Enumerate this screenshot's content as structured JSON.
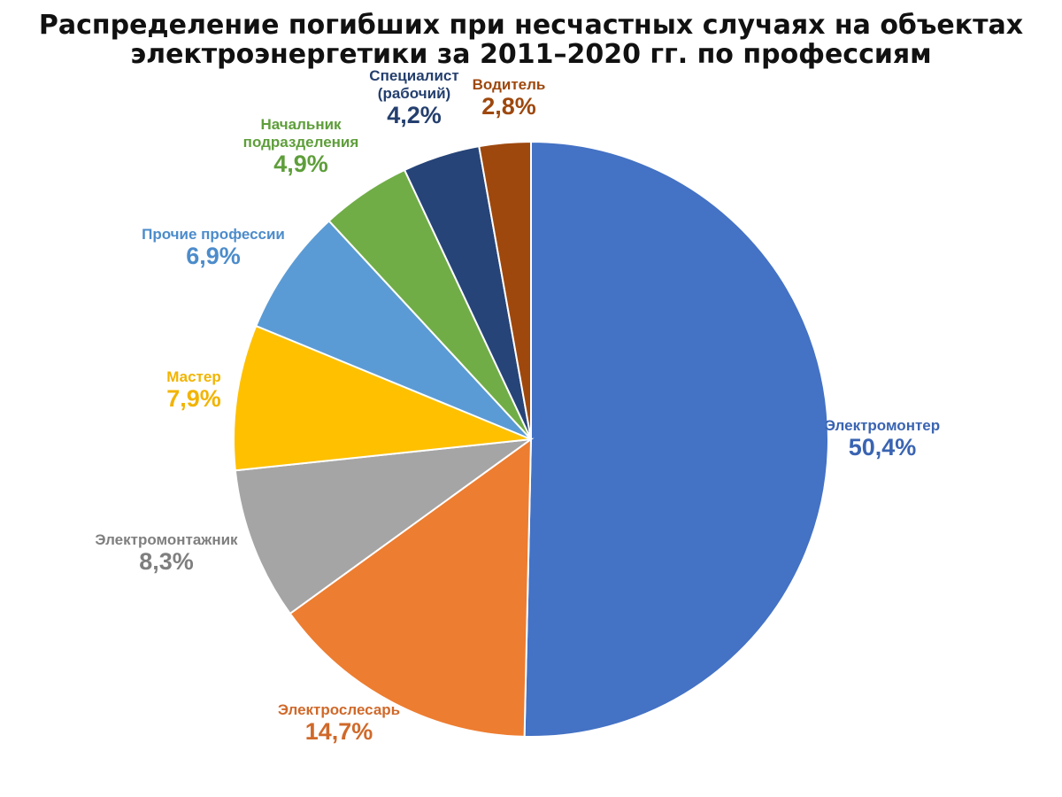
{
  "chart_data": {
    "type": "pie",
    "title_lines": [
      "Распределение погибших при несчастных случаях на объектах",
      "электроэнергетики за 2011–2020 гг. по профессиям"
    ],
    "slices": [
      {
        "name_lines": [
          "Электромонтер"
        ],
        "value": 50.4,
        "value_label": "50,4%",
        "color": "#4472C4"
      },
      {
        "name_lines": [
          "Электрослесарь"
        ],
        "value": 14.7,
        "value_label": "14,7%",
        "color": "#ED7D31"
      },
      {
        "name_lines": [
          "Электромонтажник"
        ],
        "value": 8.3,
        "value_label": "8,3%",
        "color": "#A5A5A5"
      },
      {
        "name_lines": [
          "Мастер"
        ],
        "value": 7.9,
        "value_label": "7,9%",
        "color": "#FFC000"
      },
      {
        "name_lines": [
          "Прочие профессии"
        ],
        "value": 6.9,
        "value_label": "6,9%",
        "color": "#5B9BD5"
      },
      {
        "name_lines": [
          "Начальник",
          "подразделения"
        ],
        "value": 4.9,
        "value_label": "4,9%",
        "color": "#70AD47"
      },
      {
        "name_lines": [
          "Специалист",
          "(рабочий)"
        ],
        "value": 4.2,
        "value_label": "4,2%",
        "color": "#264478"
      },
      {
        "name_lines": [
          "Водитель"
        ],
        "value": 2.8,
        "value_label": "2,8%",
        "color": "#9E480E"
      }
    ],
    "label_colors": [
      "#3A64B2",
      "#D0692A",
      "#7F7F7F",
      "#F2B400",
      "#4C8CCB",
      "#5E9E3A",
      "#243F6E",
      "#9E480E"
    ],
    "start_angle_deg": 0,
    "direction": "clockwise",
    "legend": "none",
    "data_labels": "outside"
  }
}
